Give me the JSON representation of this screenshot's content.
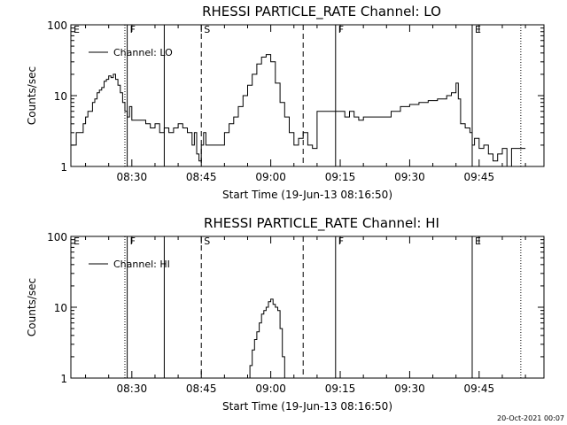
{
  "date_stamp": "20-Oct-2021 00:07",
  "chart_data": [
    {
      "type": "line",
      "title": "RHESSI PARTICLE_RATE Channel: LO",
      "xlabel": "Start Time (19-Jun-13 08:16:50)",
      "ylabel": "Counts/sec",
      "y_scale": "log",
      "ylim": [
        1,
        100
      ],
      "y_ticks": [
        "1",
        "10",
        "100"
      ],
      "xlim": [
        "08:16:50",
        "09:59:00"
      ],
      "x_ticks": [
        "08:30",
        "08:45",
        "09:00",
        "09:15",
        "09:30",
        "09:45"
      ],
      "grid": false,
      "legend_position": "top-left",
      "series": [
        {
          "name": "Channel: LO",
          "x": [
            "08:17:00",
            "08:17:30",
            "08:18:00",
            "08:18:30",
            "08:19:00",
            "08:19:30",
            "08:20:00",
            "08:20:30",
            "08:21:00",
            "08:21:30",
            "08:22:00",
            "08:22:30",
            "08:23:00",
            "08:23:30",
            "08:24:00",
            "08:24:30",
            "08:25:00",
            "08:25:30",
            "08:26:00",
            "08:26:30",
            "08:27:00",
            "08:27:30",
            "08:28:00",
            "08:28:30",
            "08:29:00",
            "08:29:30",
            "08:30:00",
            "08:31:00",
            "08:32:00",
            "08:33:00",
            "08:34:00",
            "08:35:00",
            "08:36:00",
            "08:37:00",
            "08:38:00",
            "08:39:00",
            "08:40:00",
            "08:41:00",
            "08:42:00",
            "08:43:00",
            "08:43:30",
            "08:44:00",
            "08:44:30",
            "08:45:00",
            "08:45:30",
            "08:46:00",
            "08:47:00",
            "08:48:00",
            "08:49:00",
            "08:50:00",
            "08:51:00",
            "08:52:00",
            "08:53:00",
            "08:54:00",
            "08:55:00",
            "08:56:00",
            "08:57:00",
            "08:58:00",
            "08:59:00",
            "09:00:00",
            "09:01:00",
            "09:02:00",
            "09:03:00",
            "09:04:00",
            "09:05:00",
            "09:06:00",
            "09:07:00",
            "09:08:00",
            "09:09:00",
            "09:10:00",
            "09:11:00",
            "09:12:00",
            "09:13:00",
            "09:14:00",
            "09:15:00",
            "09:16:00",
            "09:17:00",
            "09:18:00",
            "09:19:00",
            "09:20:00",
            "09:22:00",
            "09:24:00",
            "09:26:00",
            "09:28:00",
            "09:30:00",
            "09:32:00",
            "09:34:00",
            "09:36:00",
            "09:38:00",
            "09:39:00",
            "09:40:00",
            "09:40:30",
            "09:41:00",
            "09:42:00",
            "09:43:00",
            "09:43:30",
            "09:44:00",
            "09:45:00",
            "09:46:00",
            "09:47:00",
            "09:48:00",
            "09:49:00",
            "09:50:00",
            "09:51:00",
            "09:52:00",
            "09:53:00",
            "09:54:00",
            "09:55:00"
          ],
          "values": [
            2,
            2,
            3,
            3,
            3,
            4,
            5,
            6,
            6,
            8,
            9,
            11,
            12,
            13,
            16,
            17,
            19,
            18,
            20,
            17,
            14,
            11,
            8,
            6,
            5,
            7,
            4.5,
            4.5,
            4.5,
            4,
            3.5,
            4,
            3,
            3.5,
            3,
            3.5,
            4,
            3.5,
            3,
            2,
            3,
            1.5,
            1.2,
            2,
            3,
            2,
            2,
            2,
            2,
            3,
            4,
            5,
            7,
            10,
            14,
            20,
            28,
            35,
            38,
            30,
            15,
            8,
            5,
            3,
            2,
            2.5,
            3,
            2,
            1.8,
            6,
            6,
            6,
            6,
            6,
            6,
            5,
            6,
            5,
            4.5,
            5,
            5,
            5,
            6,
            7,
            7.5,
            8,
            8.5,
            9,
            10,
            11,
            15,
            9,
            4,
            3.5,
            3,
            2,
            2.5,
            1.8,
            2,
            1.5,
            1.2,
            1.5,
            1.8,
            1,
            1.8,
            1.8,
            1.8,
            1.8
          ]
        }
      ],
      "markers": [
        {
          "label": "E",
          "x": "08:16:50",
          "style": "solid"
        },
        {
          "label": "",
          "x": "08:28:30",
          "style": "dotted"
        },
        {
          "label": "F",
          "x": "08:29:00",
          "style": "solid"
        },
        {
          "label": "",
          "x": "08:37:00",
          "style": "solid"
        },
        {
          "label": "S",
          "x": "08:45:00",
          "style": "dashed"
        },
        {
          "label": "",
          "x": "09:07:00",
          "style": "dashed"
        },
        {
          "label": "F",
          "x": "09:14:00",
          "style": "solid"
        },
        {
          "label": "E",
          "x": "09:43:30",
          "style": "solid"
        },
        {
          "label": "",
          "x": "09:54:00",
          "style": "dotted"
        }
      ]
    },
    {
      "type": "line",
      "title": "RHESSI PARTICLE_RATE Channel: HI",
      "xlabel": "Start Time (19-Jun-13 08:16:50)",
      "ylabel": "Counts/sec",
      "y_scale": "log",
      "ylim": [
        1,
        100
      ],
      "y_ticks": [
        "1",
        "10",
        "100"
      ],
      "xlim": [
        "08:16:50",
        "09:59:00"
      ],
      "x_ticks": [
        "08:30",
        "08:45",
        "09:00",
        "09:15",
        "09:30",
        "09:45"
      ],
      "grid": false,
      "legend_position": "top-left",
      "series": [
        {
          "name": "Channel: HI",
          "x": [
            "08:55:00",
            "08:55:30",
            "08:56:00",
            "08:56:30",
            "08:57:00",
            "08:57:30",
            "08:58:00",
            "08:58:30",
            "08:59:00",
            "08:59:30",
            "09:00:00",
            "09:00:30",
            "09:01:00",
            "09:01:30",
            "09:02:00",
            "09:02:30",
            "09:03:00"
          ],
          "values": [
            1,
            1.5,
            2.5,
            3.5,
            4.5,
            6,
            8,
            9,
            10,
            12,
            13,
            11,
            10,
            9,
            5,
            2,
            1
          ]
        }
      ],
      "markers": [
        {
          "label": "E",
          "x": "08:16:50",
          "style": "solid"
        },
        {
          "label": "",
          "x": "08:28:30",
          "style": "dotted"
        },
        {
          "label": "F",
          "x": "08:29:00",
          "style": "solid"
        },
        {
          "label": "",
          "x": "08:37:00",
          "style": "solid"
        },
        {
          "label": "S",
          "x": "08:45:00",
          "style": "dashed"
        },
        {
          "label": "",
          "x": "09:07:00",
          "style": "dashed"
        },
        {
          "label": "F",
          "x": "09:14:00",
          "style": "solid"
        },
        {
          "label": "E",
          "x": "09:43:30",
          "style": "solid"
        },
        {
          "label": "",
          "x": "09:54:00",
          "style": "dotted"
        }
      ]
    }
  ]
}
